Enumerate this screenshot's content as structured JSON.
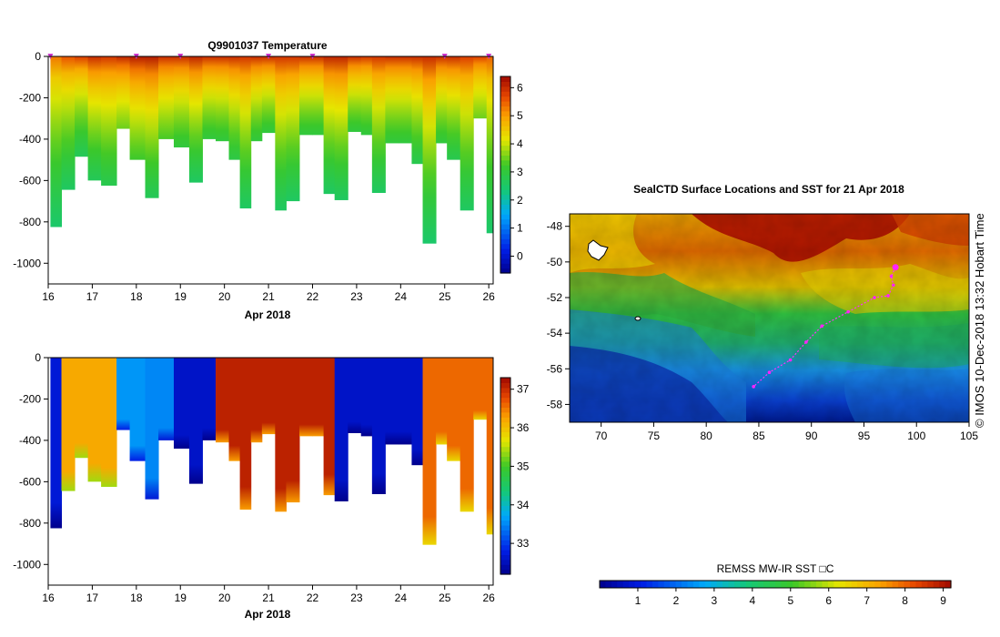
{
  "chart_data": [
    {
      "type": "heatmap",
      "title": "Q9901037  Temperature",
      "xlabel": "Apr 2018",
      "ylabel": "",
      "xlim": [
        16,
        26.1
      ],
      "ylim": [
        -1100,
        0
      ],
      "x_ticks": [
        "16",
        "17",
        "18",
        "19",
        "20",
        "21",
        "22",
        "23",
        "24",
        "25",
        "26"
      ],
      "y_ticks": [
        "0",
        "-200",
        "-400",
        "-600",
        "-800",
        "-1000"
      ],
      "colorbar": {
        "min": -0.6,
        "max": 6.4,
        "ticks": [
          "0",
          "1",
          "2",
          "3",
          "4",
          "5",
          "6"
        ]
      },
      "profiles": [
        {
          "x": 16.05,
          "max_depth": 825,
          "surface": 5.3,
          "deep": 2.5
        },
        {
          "x": 16.3,
          "max_depth": 645,
          "surface": 5.6,
          "deep": 2.6
        },
        {
          "x": 16.6,
          "max_depth": 485,
          "surface": 5.8,
          "deep": 2.7
        },
        {
          "x": 16.9,
          "max_depth": 600,
          "surface": 6.0,
          "deep": 2.7
        },
        {
          "x": 17.2,
          "max_depth": 625,
          "surface": 5.9,
          "deep": 2.8
        },
        {
          "x": 17.55,
          "max_depth": 350,
          "surface": 6.1,
          "deep": 3.5
        },
        {
          "x": 17.85,
          "max_depth": 500,
          "surface": 6.2,
          "deep": 3.2
        },
        {
          "x": 18.2,
          "max_depth": 685,
          "surface": 6.2,
          "deep": 2.7
        },
        {
          "x": 18.5,
          "max_depth": 400,
          "surface": 6.0,
          "deep": 3.3
        },
        {
          "x": 18.85,
          "max_depth": 440,
          "surface": 6.0,
          "deep": 3.0
        },
        {
          "x": 19.2,
          "max_depth": 610,
          "surface": 6.1,
          "deep": 2.6
        },
        {
          "x": 19.5,
          "max_depth": 400,
          "surface": 6.0,
          "deep": 3.0
        },
        {
          "x": 19.8,
          "max_depth": 410,
          "surface": 6.0,
          "deep": 3.0
        },
        {
          "x": 20.1,
          "max_depth": 500,
          "surface": 6.0,
          "deep": 2.9
        },
        {
          "x": 20.35,
          "max_depth": 735,
          "surface": 5.9,
          "deep": 2.6
        },
        {
          "x": 20.6,
          "max_depth": 410,
          "surface": 6.0,
          "deep": 3.0
        },
        {
          "x": 20.85,
          "max_depth": 370,
          "surface": 6.0,
          "deep": 3.0
        },
        {
          "x": 21.15,
          "max_depth": 745,
          "surface": 5.9,
          "deep": 2.6
        },
        {
          "x": 21.4,
          "max_depth": 700,
          "surface": 5.9,
          "deep": 2.6
        },
        {
          "x": 21.7,
          "max_depth": 380,
          "surface": 6.0,
          "deep": 3.0
        },
        {
          "x": 22.0,
          "max_depth": 380,
          "surface": 6.0,
          "deep": 3.0
        },
        {
          "x": 22.25,
          "max_depth": 665,
          "surface": 6.1,
          "deep": 2.6
        },
        {
          "x": 22.5,
          "max_depth": 695,
          "surface": 6.1,
          "deep": 2.6
        },
        {
          "x": 22.8,
          "max_depth": 365,
          "surface": 6.0,
          "deep": 3.0
        },
        {
          "x": 23.1,
          "max_depth": 380,
          "surface": 5.9,
          "deep": 3.0
        },
        {
          "x": 23.35,
          "max_depth": 660,
          "surface": 5.9,
          "deep": 2.6
        },
        {
          "x": 23.65,
          "max_depth": 420,
          "surface": 6.0,
          "deep": 3.0
        },
        {
          "x": 23.95,
          "max_depth": 420,
          "surface": 6.0,
          "deep": 3.0
        },
        {
          "x": 24.25,
          "max_depth": 520,
          "surface": 6.0,
          "deep": 2.8
        },
        {
          "x": 24.5,
          "max_depth": 905,
          "surface": 6.0,
          "deep": 2.5
        },
        {
          "x": 24.8,
          "max_depth": 420,
          "surface": 6.0,
          "deep": 3.0
        },
        {
          "x": 25.05,
          "max_depth": 500,
          "surface": 6.0,
          "deep": 2.8
        },
        {
          "x": 25.35,
          "max_depth": 745,
          "surface": 5.8,
          "deep": 2.6
        },
        {
          "x": 25.65,
          "max_depth": 300,
          "surface": 5.8,
          "deep": 3.5
        },
        {
          "x": 25.95,
          "max_depth": 855,
          "surface": 5.5,
          "deep": 2.5
        }
      ]
    },
    {
      "type": "heatmap",
      "title": "",
      "xlabel": "Apr 2018",
      "ylabel": "",
      "xlim": [
        16,
        26.1
      ],
      "ylim": [
        -1100,
        0
      ],
      "x_ticks": [
        "16",
        "17",
        "18",
        "19",
        "20",
        "21",
        "22",
        "23",
        "24",
        "25",
        "26"
      ],
      "y_ticks": [
        "0",
        "-200",
        "-400",
        "-600",
        "-800",
        "-1000"
      ],
      "colorbar": {
        "min": 32.2,
        "max": 37.3,
        "ticks": [
          "33",
          "34",
          "35",
          "36",
          "37"
        ]
      },
      "profiles": [
        {
          "x": 16.05,
          "max_depth": 825,
          "value": 32.7
        },
        {
          "x": 16.3,
          "max_depth": 645,
          "value": 36.2
        },
        {
          "x": 16.6,
          "max_depth": 485,
          "value": 36.2
        },
        {
          "x": 16.9,
          "max_depth": 600,
          "value": 36.2
        },
        {
          "x": 17.2,
          "max_depth": 625,
          "value": 36.2
        },
        {
          "x": 17.55,
          "max_depth": 350,
          "value": 33.6
        },
        {
          "x": 17.85,
          "max_depth": 500,
          "value": 33.6
        },
        {
          "x": 18.2,
          "max_depth": 685,
          "value": 33.5
        },
        {
          "x": 18.5,
          "max_depth": 400,
          "value": 33.5
        },
        {
          "x": 18.85,
          "max_depth": 440,
          "value": 32.6
        },
        {
          "x": 19.2,
          "max_depth": 610,
          "value": 32.6
        },
        {
          "x": 19.5,
          "max_depth": 400,
          "value": 32.6
        },
        {
          "x": 19.8,
          "max_depth": 410,
          "value": 37.1
        },
        {
          "x": 20.1,
          "max_depth": 500,
          "value": 37.1
        },
        {
          "x": 20.35,
          "max_depth": 735,
          "value": 37.1
        },
        {
          "x": 20.6,
          "max_depth": 410,
          "value": 37.1
        },
        {
          "x": 20.85,
          "max_depth": 370,
          "value": 37.1
        },
        {
          "x": 21.15,
          "max_depth": 745,
          "value": 37.1
        },
        {
          "x": 21.4,
          "max_depth": 700,
          "value": 37.1
        },
        {
          "x": 21.7,
          "max_depth": 380,
          "value": 37.1
        },
        {
          "x": 22.0,
          "max_depth": 380,
          "value": 37.1
        },
        {
          "x": 22.25,
          "max_depth": 665,
          "value": 37.1
        },
        {
          "x": 22.5,
          "max_depth": 695,
          "value": 32.6
        },
        {
          "x": 22.8,
          "max_depth": 365,
          "value": 32.6
        },
        {
          "x": 23.1,
          "max_depth": 380,
          "value": 32.6
        },
        {
          "x": 23.35,
          "max_depth": 660,
          "value": 32.6
        },
        {
          "x": 23.65,
          "max_depth": 420,
          "value": 32.6
        },
        {
          "x": 23.95,
          "max_depth": 420,
          "value": 32.6
        },
        {
          "x": 24.25,
          "max_depth": 520,
          "value": 32.6
        },
        {
          "x": 24.5,
          "max_depth": 905,
          "value": 36.6
        },
        {
          "x": 24.8,
          "max_depth": 420,
          "value": 36.6
        },
        {
          "x": 25.05,
          "max_depth": 500,
          "value": 36.6
        },
        {
          "x": 25.35,
          "max_depth": 745,
          "value": 36.6
        },
        {
          "x": 25.65,
          "max_depth": 300,
          "value": 36.6
        },
        {
          "x": 25.95,
          "max_depth": 855,
          "value": 36.6
        }
      ]
    },
    {
      "type": "heatmap",
      "title": "SealCTD Surface Locations and SST for 21 Apr 2018",
      "xlabel": "",
      "ylabel": "",
      "xlim": [
        67,
        105
      ],
      "ylim": [
        -59,
        -47.3
      ],
      "x_ticks": [
        "70",
        "75",
        "80",
        "85",
        "90",
        "95",
        "100",
        "105"
      ],
      "y_ticks": [
        "-48",
        "-50",
        "-52",
        "-54",
        "-56",
        "-58"
      ],
      "colorbar": {
        "label": "REMSS MW-IR SST □C",
        "min": 0,
        "max": 9.2,
        "ticks": [
          "1",
          "2",
          "3",
          "4",
          "5",
          "6",
          "7",
          "8",
          "9"
        ]
      },
      "track": [
        {
          "lon": 98.0,
          "lat": -50.3
        },
        {
          "lon": 97.6,
          "lat": -50.8
        },
        {
          "lon": 97.8,
          "lat": -51.3
        },
        {
          "lon": 97.3,
          "lat": -51.9
        },
        {
          "lon": 96.0,
          "lat": -52.0
        },
        {
          "lon": 93.5,
          "lat": -52.8
        },
        {
          "lon": 91.0,
          "lat": -53.6
        },
        {
          "lon": 89.5,
          "lat": -54.5
        },
        {
          "lon": 88.0,
          "lat": -55.5
        },
        {
          "lon": 86.0,
          "lat": -56.2
        },
        {
          "lon": 84.5,
          "lat": -57.0
        }
      ],
      "side_label": "©  IMOS 10-Dec-2018 13:32 Hobart Time"
    }
  ]
}
